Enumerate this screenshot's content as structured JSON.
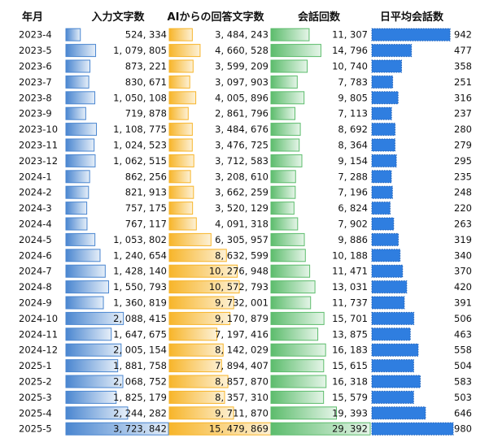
{
  "chart_data": {
    "type": "table",
    "columns": [
      "年月",
      "入力文字数",
      "AIからの回答文字数",
      "会話回数",
      "日平均会話数"
    ],
    "colors": {
      "input_chars": "#4a86d0",
      "ai_chars": "#f7b52a",
      "sessions": "#5cbc6c",
      "daily_avg": "#2f7ee0"
    },
    "rows": [
      {
        "month": "2023-4",
        "input_chars": 524334,
        "ai_chars": 3484243,
        "sessions": 11307,
        "daily_avg": 942
      },
      {
        "month": "2023-5",
        "input_chars": 1079805,
        "ai_chars": 4660528,
        "sessions": 14796,
        "daily_avg": 477
      },
      {
        "month": "2023-6",
        "input_chars": 873221,
        "ai_chars": 3599209,
        "sessions": 10740,
        "daily_avg": 358
      },
      {
        "month": "2023-7",
        "input_chars": 830671,
        "ai_chars": 3097903,
        "sessions": 7783,
        "daily_avg": 251
      },
      {
        "month": "2023-8",
        "input_chars": 1050108,
        "ai_chars": 4005896,
        "sessions": 9805,
        "daily_avg": 316
      },
      {
        "month": "2023-9",
        "input_chars": 719878,
        "ai_chars": 2861796,
        "sessions": 7113,
        "daily_avg": 237
      },
      {
        "month": "2023-10",
        "input_chars": 1108775,
        "ai_chars": 3484676,
        "sessions": 8692,
        "daily_avg": 280
      },
      {
        "month": "2023-11",
        "input_chars": 1024523,
        "ai_chars": 3476725,
        "sessions": 8364,
        "daily_avg": 279
      },
      {
        "month": "2023-12",
        "input_chars": 1062515,
        "ai_chars": 3712583,
        "sessions": 9154,
        "daily_avg": 295
      },
      {
        "month": "2024-1",
        "input_chars": 862256,
        "ai_chars": 3208610,
        "sessions": 7288,
        "daily_avg": 235
      },
      {
        "month": "2024-2",
        "input_chars": 821913,
        "ai_chars": 3662259,
        "sessions": 7196,
        "daily_avg": 248
      },
      {
        "month": "2024-3",
        "input_chars": 757175,
        "ai_chars": 3520129,
        "sessions": 6824,
        "daily_avg": 220
      },
      {
        "month": "2024-4",
        "input_chars": 767117,
        "ai_chars": 4091318,
        "sessions": 7902,
        "daily_avg": 263
      },
      {
        "month": "2024-5",
        "input_chars": 1053802,
        "ai_chars": 6305957,
        "sessions": 9886,
        "daily_avg": 319
      },
      {
        "month": "2024-6",
        "input_chars": 1240654,
        "ai_chars": 8632599,
        "sessions": 10188,
        "daily_avg": 340
      },
      {
        "month": "2024-7",
        "input_chars": 1428140,
        "ai_chars": 10276948,
        "sessions": 11471,
        "daily_avg": 370
      },
      {
        "month": "2024-8",
        "input_chars": 1550793,
        "ai_chars": 10572793,
        "sessions": 13031,
        "daily_avg": 420
      },
      {
        "month": "2024-9",
        "input_chars": 1360819,
        "ai_chars": 9732001,
        "sessions": 11737,
        "daily_avg": 391
      },
      {
        "month": "2024-10",
        "input_chars": 2088415,
        "ai_chars": 9170879,
        "sessions": 15701,
        "daily_avg": 506
      },
      {
        "month": "2024-11",
        "input_chars": 1647675,
        "ai_chars": 7197416,
        "sessions": 13875,
        "daily_avg": 463
      },
      {
        "month": "2024-12",
        "input_chars": 2005154,
        "ai_chars": 8142029,
        "sessions": 16183,
        "daily_avg": 558
      },
      {
        "month": "2025-1",
        "input_chars": 1881758,
        "ai_chars": 7894407,
        "sessions": 15615,
        "daily_avg": 504
      },
      {
        "month": "2025-2",
        "input_chars": 2068752,
        "ai_chars": 8857870,
        "sessions": 16318,
        "daily_avg": 583
      },
      {
        "month": "2025-3",
        "input_chars": 1825179,
        "ai_chars": 8357310,
        "sessions": 15579,
        "daily_avg": 503
      },
      {
        "month": "2025-4",
        "input_chars": 2244282,
        "ai_chars": 9711870,
        "sessions": 19393,
        "daily_avg": 646
      },
      {
        "month": "2025-5",
        "input_chars": 3723842,
        "ai_chars": 15479869,
        "sessions": 29392,
        "daily_avg": 980
      }
    ]
  }
}
